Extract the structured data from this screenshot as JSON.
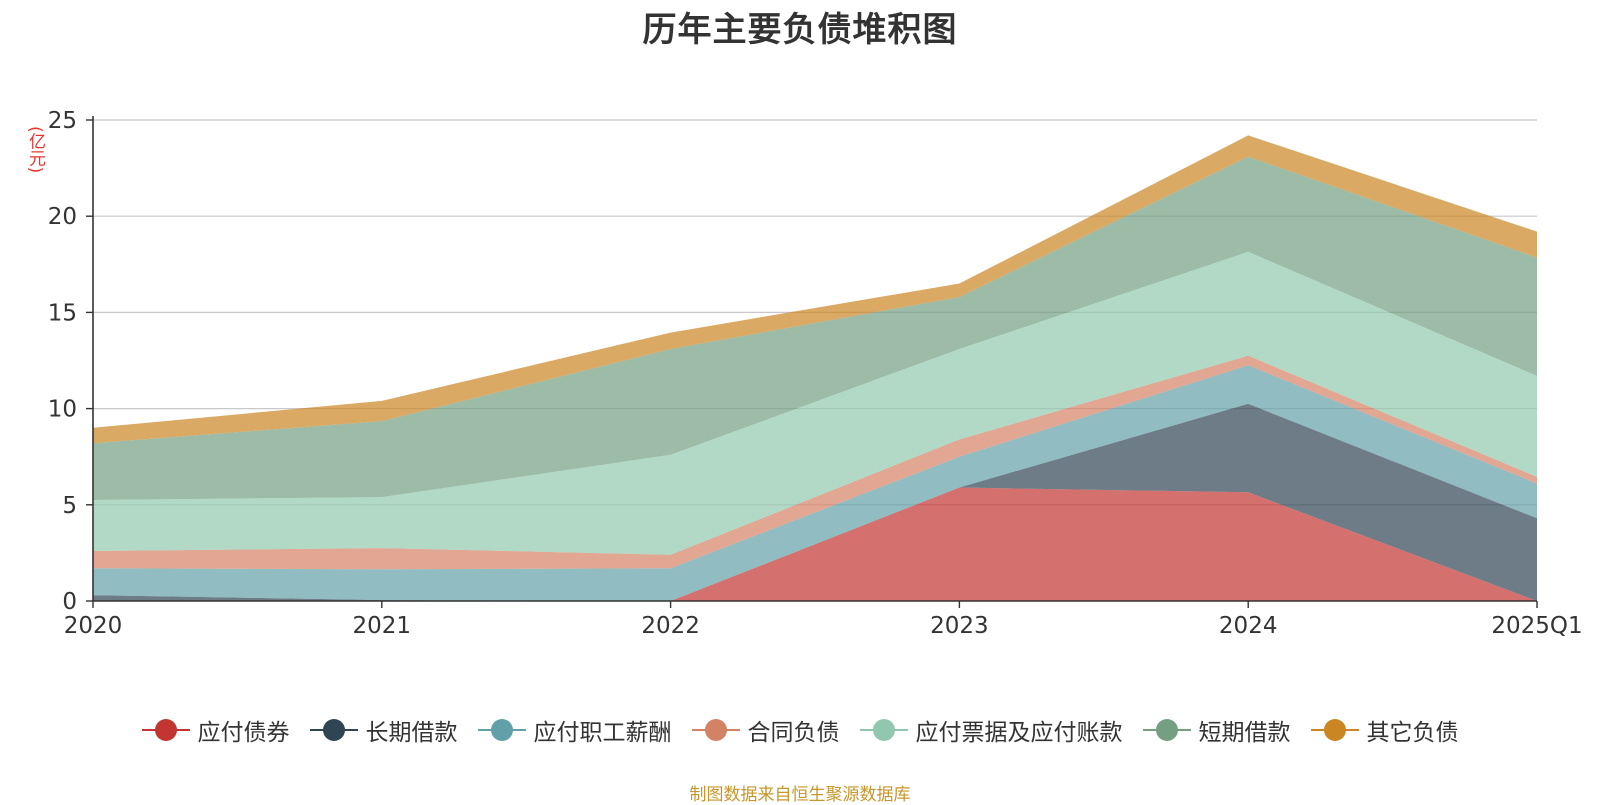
{
  "chart_data": {
    "type": "area",
    "stacked": true,
    "title": "历年主要负债堆积图",
    "ylabel": "(亿元)",
    "source": "制图数据来自恒生聚源数据库",
    "categories": [
      "2020",
      "2021",
      "2022",
      "2023",
      "2024",
      "2025Q1"
    ],
    "ylim": [
      0,
      25
    ],
    "yticks": [
      0,
      5,
      10,
      15,
      20,
      25
    ],
    "grid": true,
    "legend_position": "bottom",
    "series": [
      {
        "name": "应付债券",
        "color": "#c23531",
        "values": [
          0,
          0,
          0,
          5.9,
          5.65,
          0
        ]
      },
      {
        "name": "长期借款",
        "color": "#2f4554",
        "values": [
          0.3,
          0.05,
          0,
          0,
          4.6,
          4.3
        ]
      },
      {
        "name": "应付职工薪酬",
        "color": "#61a0a8",
        "values": [
          1.4,
          1.6,
          1.7,
          1.6,
          2.0,
          1.8
        ]
      },
      {
        "name": "合同负债",
        "color": "#d48265",
        "values": [
          0.9,
          1.1,
          0.7,
          0.9,
          0.5,
          0.35
        ]
      },
      {
        "name": "应付票据及应付账款",
        "color": "#91c7ae",
        "values": [
          2.65,
          2.65,
          5.2,
          4.7,
          5.4,
          5.25
        ]
      },
      {
        "name": "短期借款",
        "color": "#749f83",
        "values": [
          2.95,
          3.95,
          5.5,
          2.7,
          4.95,
          6.15
        ]
      },
      {
        "name": "其它负债",
        "color": "#ca8622",
        "values": [
          0.8,
          1.05,
          0.85,
          0.7,
          1.1,
          1.35
        ]
      }
    ]
  }
}
